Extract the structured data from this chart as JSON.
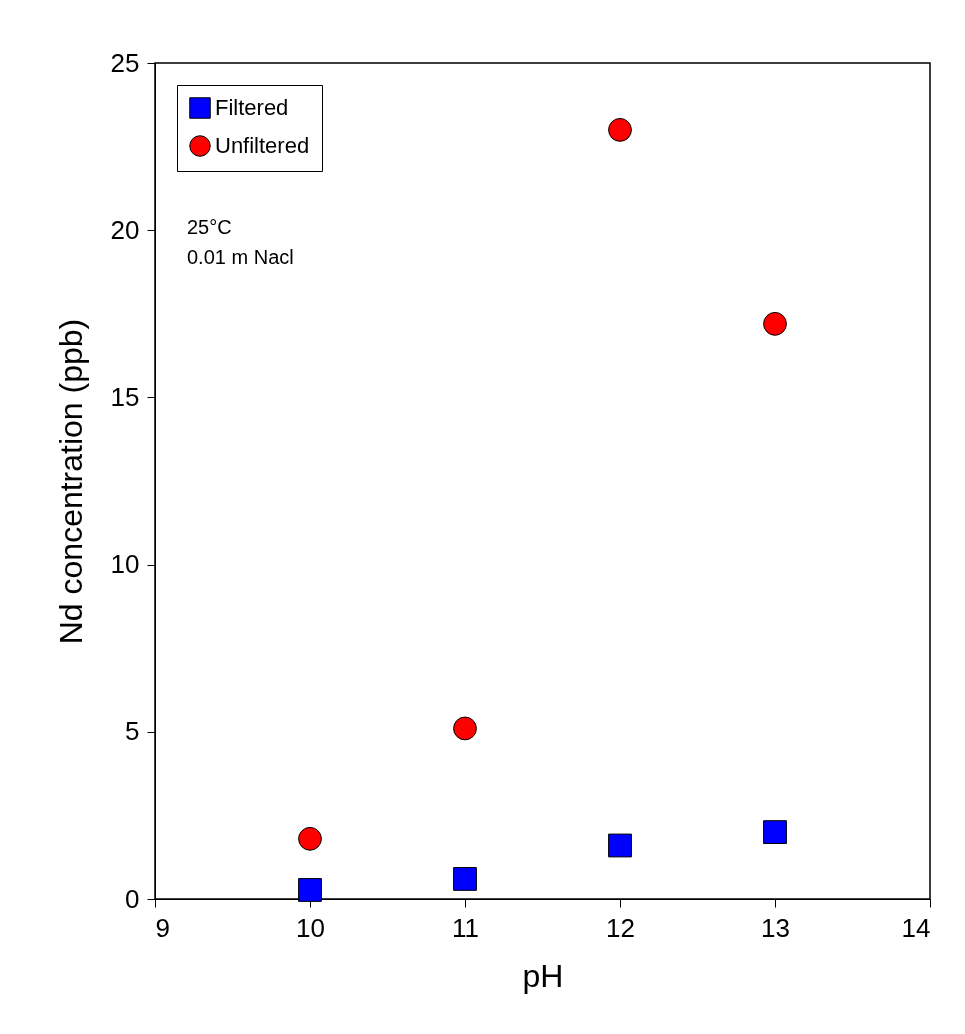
{
  "chart_data": {
    "type": "scatter",
    "xlabel": "pH",
    "ylabel": "Nd concentration (ppb)",
    "xlim": [
      9,
      14
    ],
    "xticks": [
      9,
      10,
      11,
      12,
      13,
      14
    ],
    "ylim": [
      0,
      25
    ],
    "yticks": [
      0,
      5,
      10,
      15,
      20,
      25
    ],
    "grid": false,
    "legend": "top left",
    "annotations": [
      "25°C",
      "0.01 m Nacl"
    ],
    "series": [
      {
        "name": "Filtered",
        "color": "#0000ff",
        "marker": "square",
        "x": [
          10,
          11,
          12,
          13
        ],
        "values": [
          0.27,
          0.6,
          1.6,
          2.0
        ]
      },
      {
        "name": "Unfiltered",
        "color": "#ff0000",
        "marker": "circle",
        "x": [
          10,
          11,
          12,
          13
        ],
        "values": [
          1.8,
          5.1,
          23.0,
          17.2
        ]
      }
    ]
  }
}
